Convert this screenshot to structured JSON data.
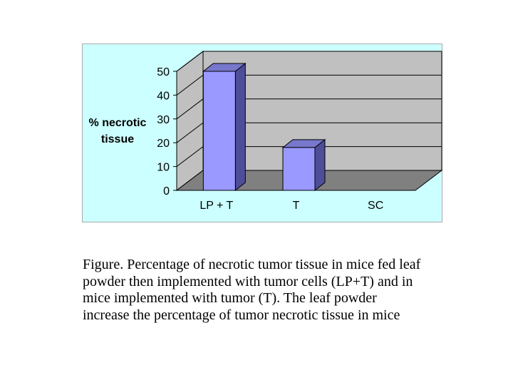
{
  "chart_data": {
    "type": "bar",
    "categories": [
      "LP + T",
      "T",
      "SC"
    ],
    "values": [
      50,
      18,
      0
    ],
    "title": "",
    "xlabel": "",
    "ylabel_lines": [
      "% necrotic",
      "tissue"
    ],
    "ylim": [
      0,
      50
    ],
    "yticks": [
      "0",
      "10",
      "20",
      "30",
      "40",
      "50"
    ],
    "grid": true,
    "legend": "none",
    "three_d": true,
    "colors": {
      "panel_background": "#ccffff",
      "bar_front": "#9999ff",
      "bar_side": "#4d4d99",
      "bar_top": "#7777cc",
      "wall": "#c0c0c0",
      "floor": "#808080",
      "gridline": "#000000"
    }
  },
  "caption": {
    "lines": [
      "Figure. Percentage of  necrotic tumor tissue in mice fed leaf",
      "powder then implemented with tumor cells (LP+T) and in",
      "mice implemented with tumor (T). The leaf powder",
      "increase the percentage of tumor necrotic tissue in mice"
    ]
  }
}
